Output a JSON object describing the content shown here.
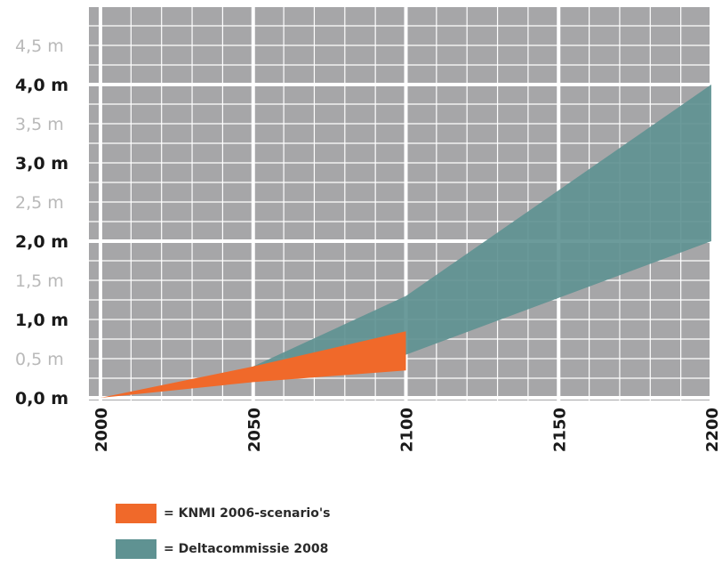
{
  "chart_data": {
    "type": "area",
    "x_ticks": [
      "2000",
      "2050",
      "2100",
      "2150",
      "2200"
    ],
    "y_ticks": [
      {
        "value": 0.0,
        "label": "0,0 m",
        "major": true
      },
      {
        "value": 0.5,
        "label": "0,5 m",
        "major": false
      },
      {
        "value": 1.0,
        "label": "1,0 m",
        "major": true
      },
      {
        "value": 1.5,
        "label": "1,5 m",
        "major": false
      },
      {
        "value": 2.0,
        "label": "2,0 m",
        "major": true
      },
      {
        "value": 2.5,
        "label": "2,5 m",
        "major": false
      },
      {
        "value": 3.0,
        "label": "3,0 m",
        "major": true
      },
      {
        "value": 3.5,
        "label": "3,5 m",
        "major": false
      },
      {
        "value": 4.0,
        "label": "4,0 m",
        "major": true
      },
      {
        "value": 4.5,
        "label": "4,5 m",
        "major": false
      }
    ],
    "xlim": [
      2000,
      2200
    ],
    "ylim": [
      0,
      4.8
    ],
    "series": [
      {
        "name": "= Deltacommissie 2008",
        "color": "#5f9292",
        "upper": [
          [
            2050,
            0.4
          ],
          [
            2100,
            1.3
          ],
          [
            2200,
            4.0
          ]
        ],
        "lower": [
          [
            2050,
            0.35
          ],
          [
            2100,
            0.55
          ],
          [
            2200,
            2.0
          ]
        ]
      },
      {
        "name": "= KNMI 2006-scenario's",
        "color": "#f0692a",
        "upper": [
          [
            2000,
            0.0
          ],
          [
            2050,
            0.4
          ],
          [
            2100,
            0.85
          ]
        ],
        "lower": [
          [
            2000,
            0.0
          ],
          [
            2050,
            0.2
          ],
          [
            2100,
            0.35
          ]
        ]
      }
    ],
    "colors": {
      "plot_bg": "#a6a6a8",
      "grid": "#ffffff"
    },
    "legend_position": "bottom-left"
  }
}
